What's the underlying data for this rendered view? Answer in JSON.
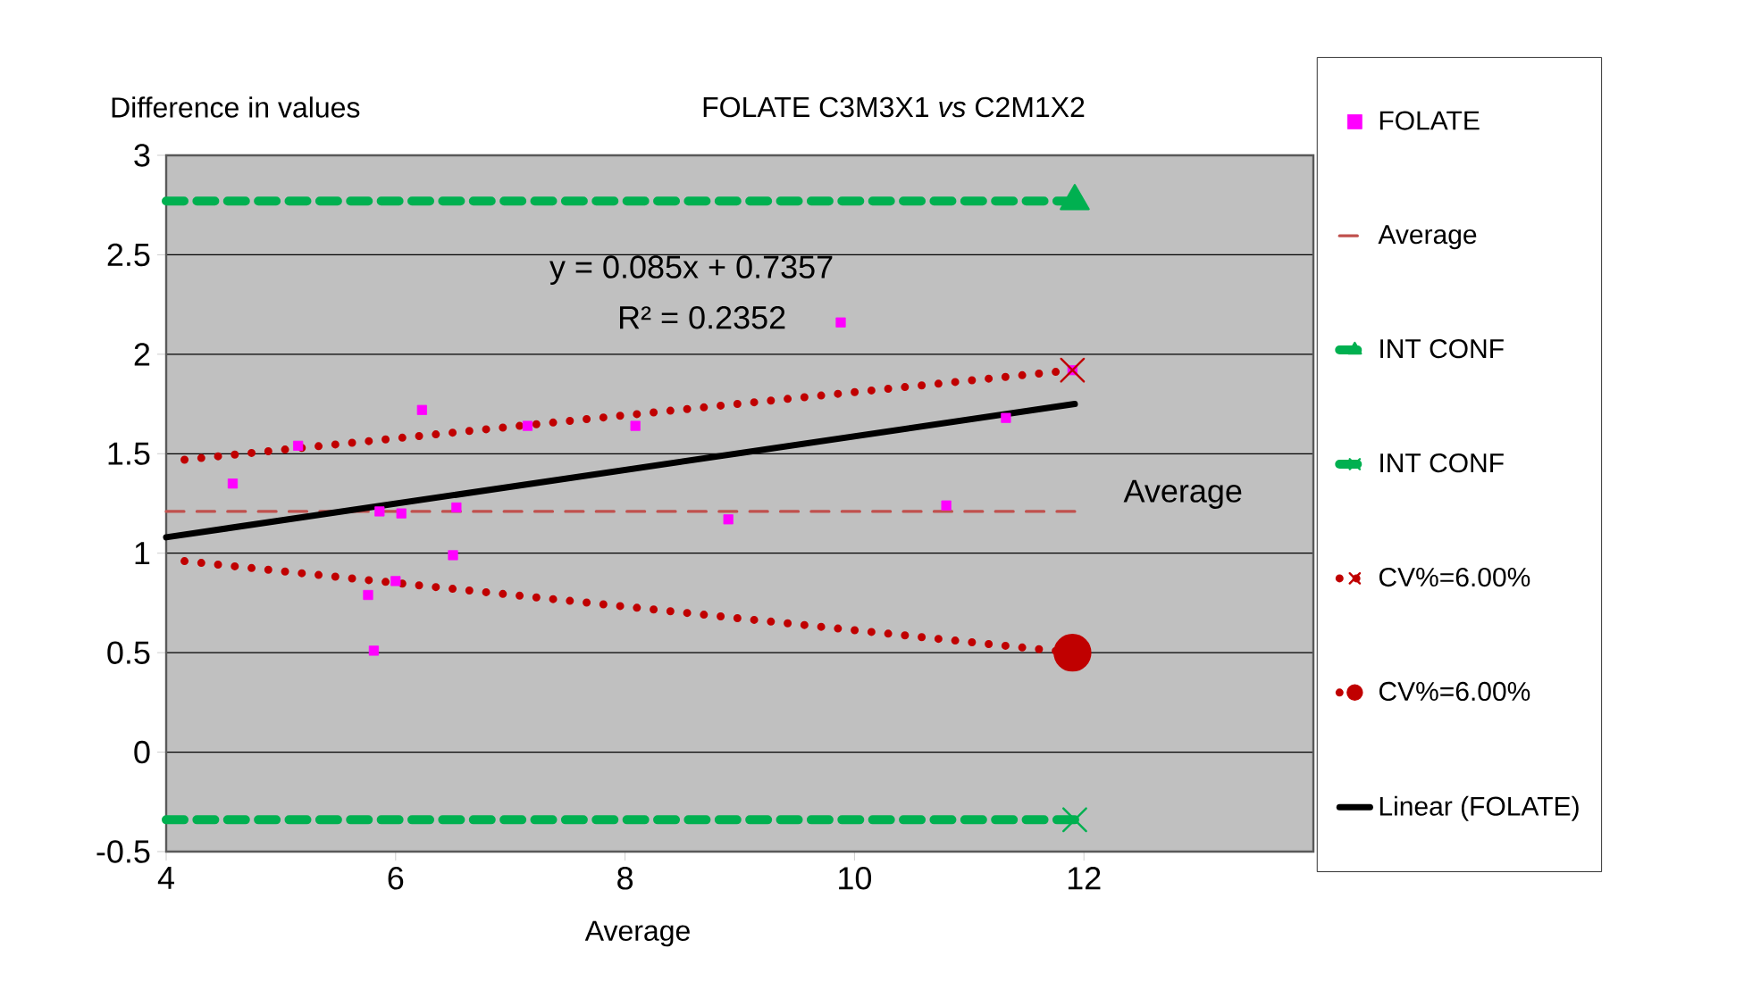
{
  "chart_data": {
    "type": "scatter",
    "title": "FOLATE C3M3X1 *vs* C2M1X2",
    "xlabel": "Average",
    "ylabel": "Difference in values",
    "xlim": [
      4,
      14
    ],
    "xticks": [
      4,
      6,
      8,
      10,
      12
    ],
    "ylim": [
      -0.5,
      3
    ],
    "yticks": [
      -0.5,
      0,
      0.5,
      1,
      1.5,
      2,
      2.5,
      3
    ],
    "grid": "y",
    "legend": "right",
    "series": [
      {
        "name": "FOLATE",
        "color": "#ff00ff",
        "marker": "square",
        "x": [
          4.58,
          5.15,
          6.23,
          5.76,
          5.81,
          5.86,
          6.05,
          6.0,
          6.53,
          6.5,
          7.15,
          8.09,
          9.88,
          8.9,
          10.8,
          11.32,
          11.9
        ],
        "values": [
          1.35,
          1.54,
          1.72,
          0.79,
          0.51,
          1.21,
          1.2,
          0.86,
          1.23,
          0.99,
          1.64,
          1.64,
          2.16,
          1.17,
          1.24,
          1.68,
          1.92
        ]
      },
      {
        "name": "Average",
        "type": "line",
        "color": "#c0504d",
        "line_style": "dashed",
        "x": [
          4,
          11.92
        ],
        "values": [
          1.21,
          1.21
        ]
      },
      {
        "name": "INT CONF",
        "type": "line",
        "color": "#00b050",
        "line_style": "dashed",
        "marker": "triangle",
        "x": [
          4,
          11.92
        ],
        "values": [
          2.77,
          2.77
        ]
      },
      {
        "name": "INT CONF",
        "type": "line",
        "color": "#00b050",
        "line_style": "dashed",
        "marker": "cross",
        "x": [
          4,
          11.92
        ],
        "values": [
          -0.34,
          -0.34
        ]
      },
      {
        "name": "CV%=6.00%",
        "type": "line",
        "color": "#c00000",
        "line_style": "dotted",
        "marker": "cross",
        "x": [
          4.16,
          11.9
        ],
        "values": [
          1.47,
          1.92
        ]
      },
      {
        "name": "CV%=6.00%",
        "type": "line",
        "color": "#c00000",
        "line_style": "dotted",
        "marker": "circle",
        "x": [
          4.16,
          11.9
        ],
        "values": [
          0.96,
          0.5
        ]
      },
      {
        "name": "Linear (FOLATE)",
        "type": "line",
        "color": "#000000",
        "line_style": "solid",
        "x": [
          4,
          11.92
        ],
        "values": [
          1.08,
          1.75
        ]
      }
    ],
    "annotations": [
      "Average",
      "y = 0.085x + 0.7357",
      "R² = 0.2352"
    ]
  }
}
